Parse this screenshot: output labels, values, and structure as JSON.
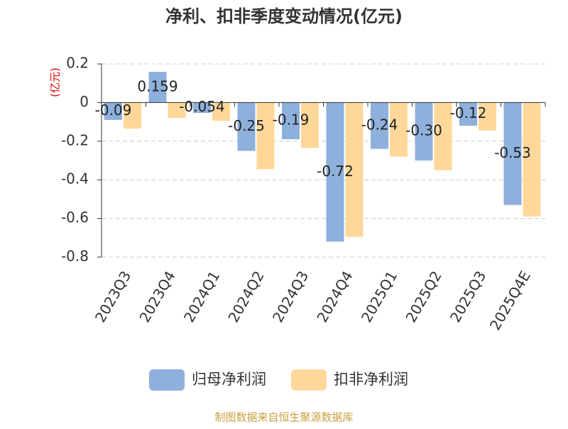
{
  "chart_data": {
    "type": "bar",
    "title": "净利、扣非季度变动情况(亿元)",
    "y_label": "(亿元)",
    "categories": [
      "2023Q3",
      "2023Q4",
      "2024Q1",
      "2024Q2",
      "2024Q3",
      "2024Q4",
      "2025Q1",
      "2025Q2",
      "2025Q3",
      "2025Q4E"
    ],
    "series": [
      {
        "name": "归母净利润",
        "color": "#8eb0dc",
        "values": [
          -0.09,
          0.159,
          -0.054,
          -0.25,
          -0.19,
          -0.72,
          -0.24,
          -0.3,
          -0.12,
          -0.53
        ],
        "value_labels": [
          "-0.09",
          "0.159",
          "-0.054",
          "-0.25",
          "-0.19",
          "-0.72",
          "-0.24",
          "-0.30",
          "-0.12",
          "-0.53"
        ]
      },
      {
        "name": "扣非净利润",
        "color": "#ffd899",
        "values": [
          -0.135,
          -0.08,
          -0.095,
          -0.345,
          -0.235,
          -0.695,
          -0.28,
          -0.35,
          -0.145,
          -0.59
        ]
      }
    ],
    "ylim": [
      -0.8,
      0.2
    ],
    "yticks": [
      -0.8,
      -0.6,
      -0.4,
      -0.2,
      0,
      0.2
    ],
    "grid": true,
    "source": "制图数据来自恒生聚源数据库"
  }
}
